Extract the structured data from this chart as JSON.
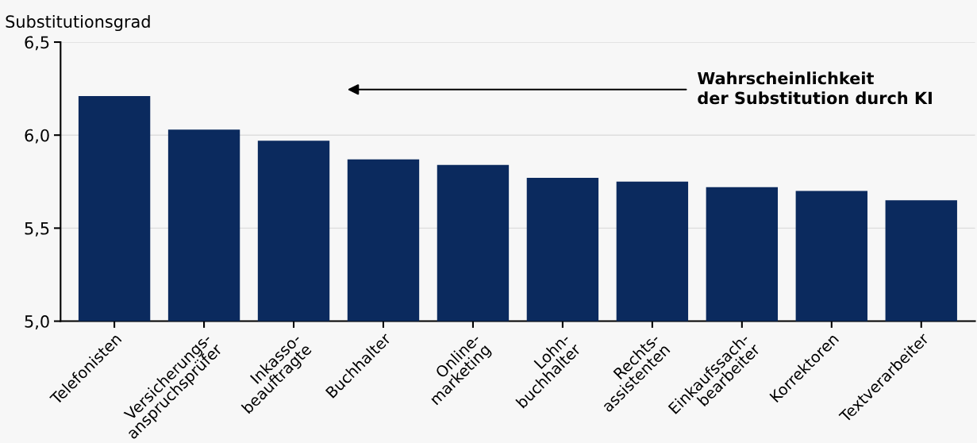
{
  "chart_data": {
    "type": "bar",
    "ylabel": "Substitutionsgrad",
    "categories": [
      "Telefonisten",
      "Versicherungs-\nanspruchsprüfer",
      "Inkasso-\nbeauftragte",
      "Buchhalter",
      "Online-\nmarketing",
      "Lohn-\nbuchhalter",
      "Rechts-\nassistenten",
      "Einkaufssach-\nbearbeiter",
      "Korrektoren",
      "Textverarbeiter"
    ],
    "values": [
      6.21,
      6.03,
      5.97,
      5.87,
      5.84,
      5.77,
      5.75,
      5.72,
      5.7,
      5.65
    ],
    "color": "#0b2a5e",
    "ylim": [
      5.0,
      6.5
    ],
    "yticks": [
      {
        "value": 5.0,
        "label": "5,0"
      },
      {
        "value": 5.5,
        "label": "5,5"
      },
      {
        "value": 6.0,
        "label": "6,0"
      },
      {
        "value": 6.5,
        "label": "6,5"
      }
    ],
    "grid": "y",
    "annotations": [
      "Wahrscheinlichkeit\nder Substitution durch KI"
    ]
  }
}
